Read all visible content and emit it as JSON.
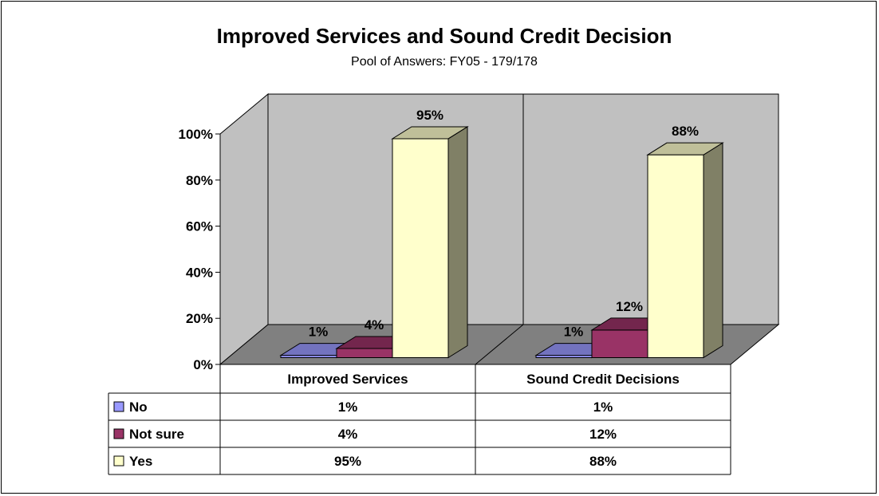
{
  "chart_data": {
    "type": "bar",
    "title": "Improved Services and Sound Credit Decision",
    "subtitle": "Pool of Answers: FY05 - 179/178",
    "categories": [
      "Improved Services",
      "Sound Credit Decisions"
    ],
    "series": [
      {
        "name": "No",
        "values": [
          1,
          1
        ],
        "labels": [
          "1%",
          "1%"
        ],
        "color": "#9999FF"
      },
      {
        "name": "Not sure",
        "values": [
          4,
          12
        ],
        "labels": [
          "4%",
          "12%"
        ],
        "color": "#993366"
      },
      {
        "name": "Yes",
        "values": [
          95,
          88
        ],
        "labels": [
          "95%",
          "88%"
        ],
        "color": "#FFFFCC"
      }
    ],
    "ylim": [
      0,
      100
    ],
    "yticks": [
      "0%",
      "20%",
      "40%",
      "60%",
      "80%",
      "100%"
    ],
    "style": "3d-clustered-column-with-data-table",
    "grid": false,
    "wall_color": "#C0C0C0",
    "floor_color": "#808080"
  }
}
